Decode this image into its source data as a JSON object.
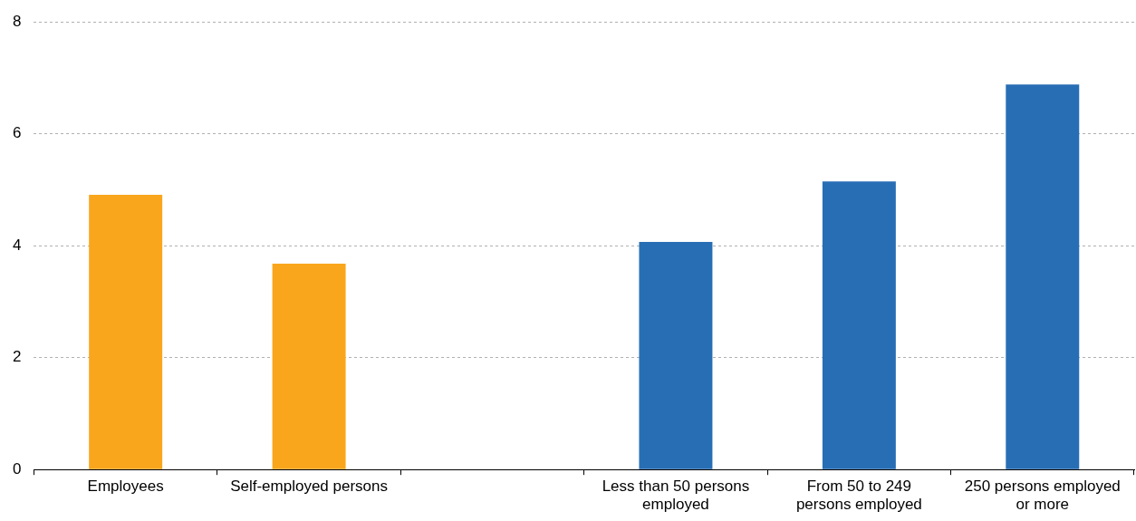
{
  "chart_data": {
    "type": "bar",
    "categories": [
      "Employees",
      "Self-employed persons",
      null,
      "Less than 50 persons employed",
      "From 50 to 249 persons employed",
      "250 persons employed or more"
    ],
    "values": [
      4.91,
      3.68,
      null,
      4.07,
      5.15,
      6.88
    ],
    "colors": [
      "#f9a61d",
      "#f9a61d",
      "#f9a61d",
      "#286eb4",
      "#286eb4",
      "#286eb4"
    ],
    "ylim": [
      0,
      8
    ],
    "yticks": [
      0,
      2,
      4,
      6,
      8
    ],
    "grid": "y"
  }
}
